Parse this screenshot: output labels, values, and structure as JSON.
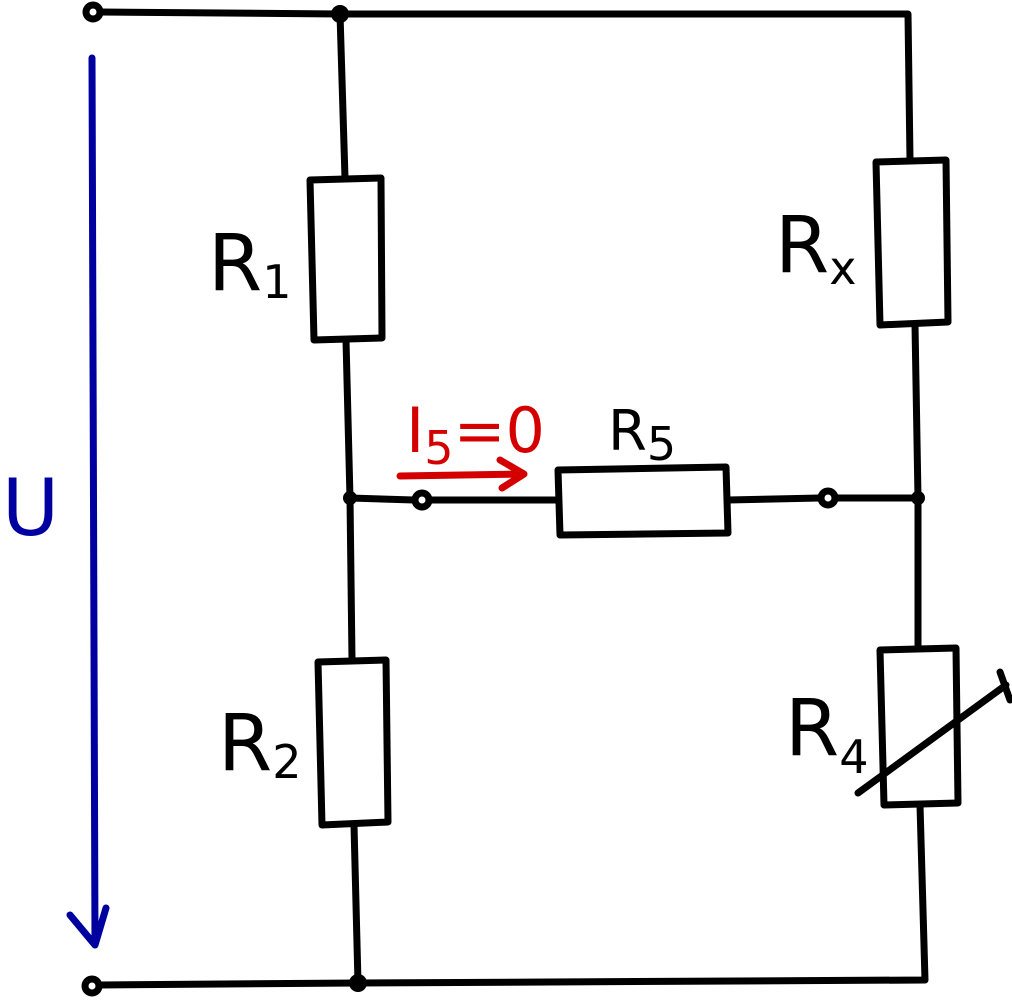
{
  "diagram": {
    "type": "wheatstone-bridge circuit",
    "voltage": {
      "label": "U",
      "color": "#0000a0"
    },
    "current": {
      "label_main": "I",
      "label_sub": "5",
      "label_rest": "=0",
      "color": "#d40000"
    },
    "resistors": [
      {
        "id": "R1",
        "main": "R",
        "sub": "1"
      },
      {
        "id": "Rx",
        "main": "R",
        "sub": "x"
      },
      {
        "id": "R5",
        "main": "R",
        "sub": "5"
      },
      {
        "id": "R2",
        "main": "R",
        "sub": "2"
      },
      {
        "id": "R4",
        "main": "R",
        "sub": "4",
        "variable": true
      }
    ]
  }
}
